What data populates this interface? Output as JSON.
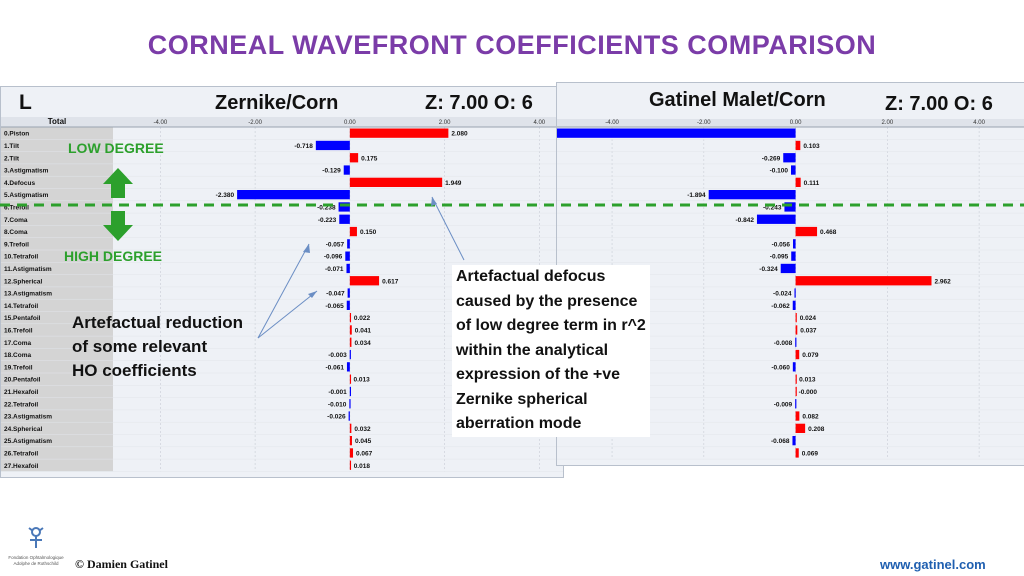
{
  "title": "CORNEAL WAVEFRONT COEFFICIENTS COMPARISON",
  "left_panel": {
    "eye": "L",
    "method": "Zernike/Corn",
    "params": "Z: 7.00 O: 6",
    "header_label": "Total"
  },
  "right_panel": {
    "method": "Gatinel Malet/Corn",
    "params": "Z: 7.00 O: 6"
  },
  "labels": {
    "low_degree": "LOW DEGREE",
    "high_degree": "HIGH DEGREE"
  },
  "annotations": {
    "left": [
      "Artefactual reduction",
      "of some relevant",
      "HO coefficients"
    ],
    "right": [
      "Artefactual defocus",
      "caused  by the presence",
      "of low degree term in r^2",
      " within the analytical",
      "expression of the +ve",
      "Zernike spherical",
      "aberration mode"
    ]
  },
  "footer": {
    "copyright": "© Damien Gatinel",
    "url": "www.gatinel.com",
    "logo_text": [
      "Fondation Ophtalmologique",
      "Adolphe de Rothschild"
    ]
  },
  "colors": {
    "title": "#7b3ca8",
    "positive": "#ff0000",
    "negative": "#0000ff",
    "green": "#2ca02c"
  },
  "chart_data": [
    {
      "type": "bar",
      "orientation": "horizontal",
      "title": "Zernike/Corn",
      "categories": [
        "0.Piston",
        "1.Tilt",
        "2.Tilt",
        "3.Astigmatism",
        "4.Defocus",
        "5.Astigmatism",
        "6.Trefoil",
        "7.Coma",
        "8.Coma",
        "9.Trefoil",
        "10.Tetrafoil",
        "11.Astigmatism",
        "12.Spherical",
        "13.Astigmatism",
        "14.Tetrafoil",
        "15.Pentafoil",
        "16.Trefoil",
        "17.Coma",
        "18.Coma",
        "19.Trefoil",
        "20.Pentafoil",
        "21.Hexafoil",
        "22.Tetrafoil",
        "23.Astigmatism",
        "24.Spherical",
        "25.Astigmatism",
        "26.Tetrafoil",
        "27.Hexafoil"
      ],
      "values": [
        2.08,
        -0.718,
        0.175,
        -0.129,
        1.949,
        -2.38,
        -0.238,
        -0.223,
        0.15,
        -0.057,
        -0.096,
        -0.071,
        0.617,
        -0.047,
        -0.065,
        0.022,
        0.041,
        0.034,
        -0.003,
        -0.061,
        0.013,
        -0.001,
        -0.01,
        -0.026,
        0.032,
        0.045,
        0.067,
        0.018
      ],
      "value_labels": [
        "2.080",
        "-0.718",
        "0.175",
        "-0.129",
        "1.949",
        "-2.380",
        "-0.238",
        "-0.223",
        "0.150",
        "-0.057",
        "-0.096",
        "-0.071",
        "0.617",
        "-0.047",
        "-0.065",
        "0.022",
        "0.041",
        "0.034",
        "-0.003",
        "-0.061",
        "0.013",
        "-0.001",
        "-0.010",
        "-0.026",
        "0.032",
        "0.045",
        "0.067",
        "0.018"
      ],
      "x_ticks": [
        "-4.00",
        "-2.00",
        "0.00",
        "2.00",
        "4.00"
      ],
      "xlim": [
        -5,
        4.5
      ]
    },
    {
      "type": "bar",
      "orientation": "horizontal",
      "title": "Gatinel Malet/Corn",
      "values": [
        -5.2,
        0.103,
        -0.269,
        -0.1,
        0.111,
        -1.894,
        -0.243,
        -0.842,
        0.468,
        -0.056,
        -0.095,
        -0.324,
        2.962,
        -0.024,
        -0.062,
        0.024,
        0.037,
        -0.008,
        0.079,
        -0.06,
        0.013,
        -0.0,
        -0.009,
        0.082,
        0.208,
        -0.068,
        0.069
      ],
      "value_labels": [
        "",
        "0.103",
        "-0.269",
        "-0.100",
        "0.111",
        "-1.894",
        "-0.243",
        "-0.842",
        "0.468",
        "-0.056",
        "-0.095",
        "-0.324",
        "2.962",
        "-0.024",
        "-0.062",
        "0.024",
        "0.037",
        "-0.008",
        "0.079",
        "-0.060",
        "0.013",
        "-0.000",
        "-0.009",
        "0.082",
        "0.208",
        "-0.068",
        "0.069"
      ],
      "x_ticks": [
        "-4.00",
        "-2.00",
        "0.00",
        "2.00",
        "4.00"
      ],
      "xlim": [
        -5.2,
        5
      ]
    }
  ]
}
